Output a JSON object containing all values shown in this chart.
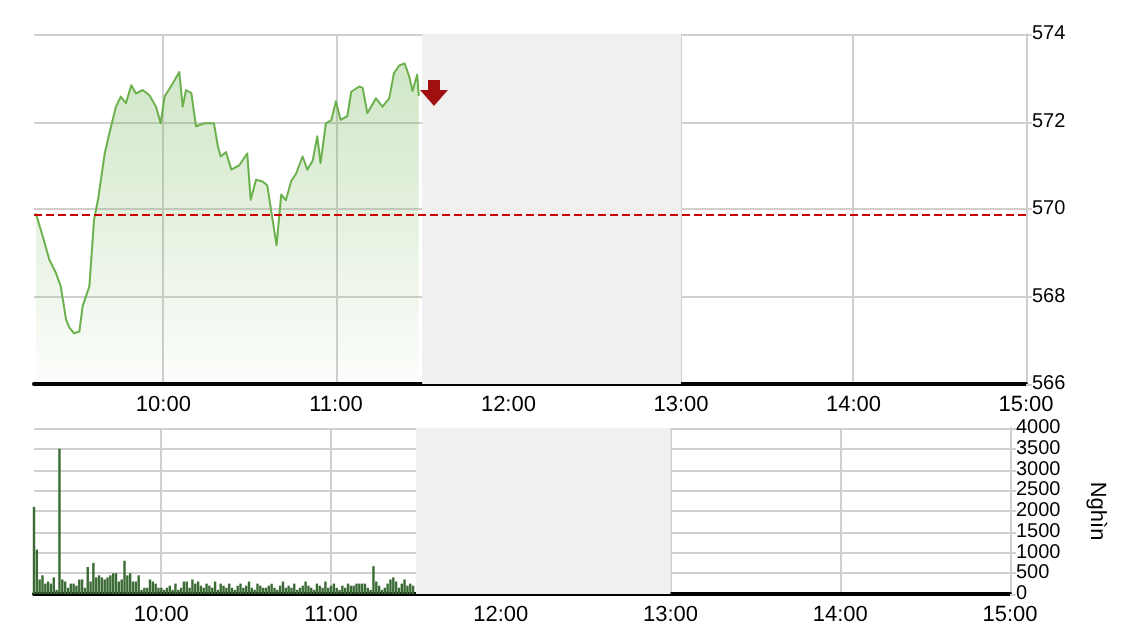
{
  "chart_data": [
    {
      "type": "area",
      "x": [
        9.262,
        9.301,
        9.339,
        9.378,
        9.405,
        9.436,
        9.455,
        9.482,
        9.513,
        9.532,
        9.571,
        9.598,
        9.621,
        9.66,
        9.687,
        9.725,
        9.753,
        9.783,
        9.814,
        9.841,
        9.88,
        9.919,
        9.957,
        9.984,
        10.007,
        10.054,
        10.092,
        10.112,
        10.131,
        10.162,
        10.189,
        10.239,
        10.293,
        10.316,
        10.332,
        10.363,
        10.394,
        10.44,
        10.486,
        10.506,
        10.537,
        10.575,
        10.602,
        10.633,
        10.656,
        10.683,
        10.71,
        10.741,
        10.768,
        10.807,
        10.834,
        10.865,
        10.892,
        10.911,
        10.942,
        10.973,
        11.0,
        11.027,
        11.066,
        11.089,
        11.135,
        11.155,
        11.182,
        11.232,
        11.27,
        11.309,
        11.336,
        11.367,
        11.398,
        11.425,
        11.444,
        11.471,
        11.48
      ],
      "values": [
        569.88,
        569.37,
        568.84,
        568.53,
        568.23,
        567.47,
        567.29,
        567.16,
        567.2,
        567.78,
        568.23,
        569.75,
        570.21,
        571.27,
        571.73,
        572.34,
        572.57,
        572.42,
        572.83,
        572.64,
        572.72,
        572.6,
        572.34,
        571.96,
        572.57,
        572.87,
        573.13,
        572.34,
        572.72,
        572.65,
        571.89,
        571.96,
        571.96,
        571.43,
        571.2,
        571.3,
        570.9,
        571.0,
        571.27,
        570.21,
        570.67,
        570.63,
        570.54,
        569.75,
        569.17,
        570.33,
        570.2,
        570.64,
        570.8,
        571.2,
        570.9,
        571.1,
        571.66,
        571.05,
        571.96,
        572.03,
        572.46,
        572.04,
        572.12,
        572.68,
        572.8,
        572.77,
        572.19,
        572.53,
        572.34,
        572.53,
        573.1,
        573.28,
        573.33,
        573.03,
        572.7,
        573.07,
        572.6
      ],
      "color": "#6ab04c",
      "xlim": [
        9.25,
        15
      ],
      "xticks": [
        {
          "value": 10,
          "label": "10:00"
        },
        {
          "value": 11,
          "label": "11:00"
        },
        {
          "value": 12,
          "label": "12:00"
        },
        {
          "value": 13,
          "label": "13:00"
        },
        {
          "value": 14,
          "label": "14:00"
        },
        {
          "value": 15,
          "label": "15:00"
        }
      ],
      "ylim": [
        566,
        574
      ],
      "yticks": [
        566,
        568,
        570,
        572,
        574
      ],
      "grid": true,
      "ref_lines": [
        {
          "axis": "y",
          "value": 569.87,
          "color": "#cc0000",
          "line_style": "dashed"
        }
      ],
      "bands": [
        {
          "axis": "x",
          "from": 11.5,
          "to": 13,
          "color": "#f0f0f0"
        }
      ]
    },
    {
      "type": "bar",
      "x": [
        9.25,
        9.2667,
        9.2833,
        9.3,
        9.3167,
        9.3333,
        9.35,
        9.3667,
        9.3833,
        9.4,
        9.4167,
        9.4333,
        9.45,
        9.4667,
        9.4833,
        9.5,
        9.5167,
        9.5333,
        9.55,
        9.5667,
        9.5833,
        9.6,
        9.6167,
        9.6333,
        9.65,
        9.6667,
        9.6833,
        9.7,
        9.7167,
        9.7333,
        9.75,
        9.7667,
        9.7833,
        9.8,
        9.8167,
        9.8333,
        9.85,
        9.8667,
        9.8833,
        9.9,
        9.9167,
        9.9333,
        9.95,
        9.9667,
        9.9833,
        10,
        10.0167,
        10.0333,
        10.05,
        10.0667,
        10.0833,
        10.1,
        10.1167,
        10.1333,
        10.15,
        10.1667,
        10.1833,
        10.2,
        10.2167,
        10.2333,
        10.25,
        10.2667,
        10.2833,
        10.3,
        10.3167,
        10.3333,
        10.35,
        10.3667,
        10.3833,
        10.4,
        10.4167,
        10.4333,
        10.45,
        10.4667,
        10.4833,
        10.5,
        10.5167,
        10.5333,
        10.55,
        10.5667,
        10.5833,
        10.6,
        10.6167,
        10.6333,
        10.65,
        10.6667,
        10.6833,
        10.7,
        10.7167,
        10.7333,
        10.75,
        10.7667,
        10.7833,
        10.8,
        10.8167,
        10.8333,
        10.85,
        10.8667,
        10.8833,
        10.9,
        10.9167,
        10.9333,
        10.95,
        10.9667,
        10.9833,
        11,
        11.0167,
        11.0333,
        11.05,
        11.0667,
        11.0833,
        11.1,
        11.1167,
        11.1333,
        11.15,
        11.1667,
        11.1833,
        11.2,
        11.2167,
        11.2333,
        11.25,
        11.2667,
        11.2833,
        11.3,
        11.3167,
        11.3333,
        11.35,
        11.3667,
        11.3833,
        11.4,
        11.4167,
        11.4333,
        11.45,
        11.4667,
        11.4833
      ],
      "values": [
        2100,
        1070,
        350,
        450,
        250,
        300,
        250,
        400,
        100,
        3500,
        350,
        300,
        150,
        250,
        250,
        200,
        350,
        350,
        150,
        650,
        300,
        750,
        400,
        450,
        400,
        350,
        400,
        450,
        500,
        500,
        300,
        350,
        800,
        450,
        500,
        300,
        300,
        450,
        100,
        150,
        150,
        350,
        300,
        250,
        150,
        150,
        100,
        150,
        200,
        100,
        250,
        100,
        150,
        300,
        300,
        150,
        350,
        250,
        300,
        200,
        150,
        250,
        200,
        150,
        300,
        100,
        250,
        200,
        150,
        250,
        150,
        100,
        200,
        250,
        150,
        200,
        300,
        150,
        100,
        250,
        200,
        150,
        150,
        200,
        250,
        150,
        100,
        200,
        300,
        150,
        200,
        150,
        250,
        100,
        150,
        200,
        300,
        200,
        150,
        100,
        250,
        200,
        150,
        300,
        150,
        200,
        250,
        150,
        100,
        200,
        150,
        250,
        200,
        200,
        250,
        250,
        250,
        250,
        150,
        100,
        670,
        300,
        200,
        100,
        150,
        250,
        350,
        400,
        300,
        150,
        250,
        350,
        200,
        250,
        200
      ],
      "color": "#3a6b35",
      "xlim": [
        9.25,
        15
      ],
      "xticks": [
        {
          "value": 10,
          "label": "10:00"
        },
        {
          "value": 11,
          "label": "11:00"
        },
        {
          "value": 12,
          "label": "12:00"
        },
        {
          "value": 13,
          "label": "13:00"
        },
        {
          "value": 14,
          "label": "14:00"
        },
        {
          "value": 15,
          "label": "15:00"
        }
      ],
      "ylim": [
        0,
        4000
      ],
      "yticks": [
        0,
        500,
        1000,
        1500,
        2000,
        2500,
        3000,
        3500,
        4000
      ],
      "ylabel": "Nghìn",
      "grid": true,
      "bands": [
        {
          "axis": "x",
          "from": 11.5,
          "to": 13,
          "color": "#f0f0f0"
        }
      ]
    }
  ]
}
